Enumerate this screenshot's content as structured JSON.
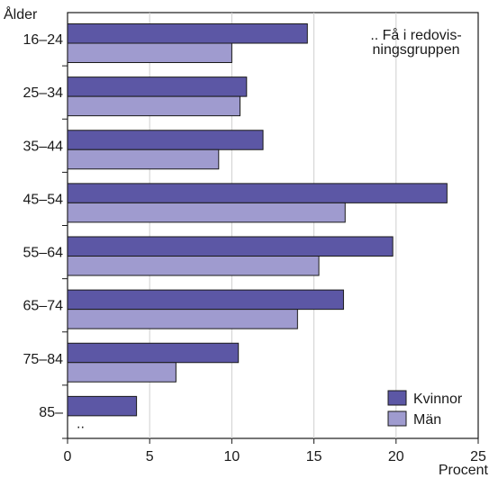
{
  "chart_data": {
    "type": "bar",
    "orientation": "horizontal",
    "ylabel": "Ålder",
    "xlabel": "Procent",
    "categories": [
      "16–24",
      "25–34",
      "35–44",
      "45–54",
      "55–64",
      "65–74",
      "75–84",
      "85–"
    ],
    "series": [
      {
        "name": "Kvinnor",
        "color": "#5c57a5",
        "values": [
          14.6,
          10.9,
          11.9,
          23.1,
          19.8,
          16.8,
          10.4,
          4.2
        ]
      },
      {
        "name": "Män",
        "color": "#9f9bcf",
        "values": [
          10.0,
          10.5,
          9.2,
          16.9,
          15.3,
          14.0,
          6.6,
          null
        ],
        "value_labels": [
          "",
          "",
          "",
          "",
          "",
          "",
          "",
          ".."
        ]
      }
    ],
    "xlim": [
      0,
      25
    ],
    "xticks": [
      0,
      5,
      10,
      15,
      20,
      25
    ],
    "grid": "vertical",
    "legend_position": "bottom-right",
    "annotation": ".. Få i redovis-\nningsgruppen"
  }
}
